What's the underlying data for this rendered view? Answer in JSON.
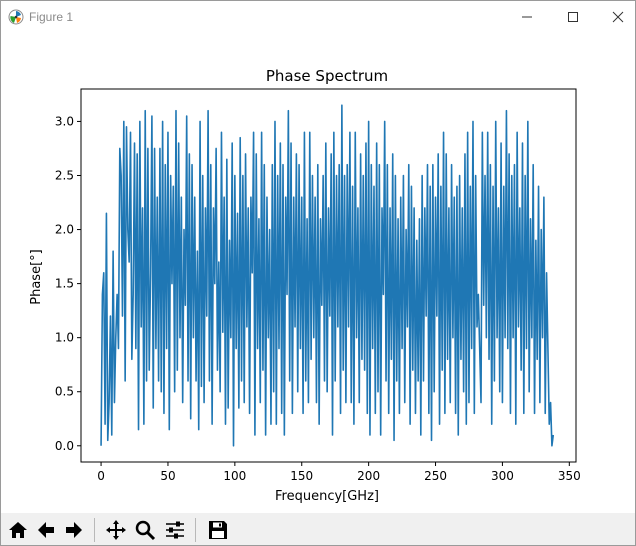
{
  "window": {
    "title": "Figure 1",
    "controls": {
      "minimize": "minimize",
      "maximize": "maximize",
      "close": "close"
    }
  },
  "toolbar": {
    "buttons": [
      {
        "name": "home-button",
        "icon": "home-icon",
        "label": "Home"
      },
      {
        "name": "back-button",
        "icon": "arrow-left-icon",
        "label": "Back"
      },
      {
        "name": "forward-button",
        "icon": "arrow-right-icon",
        "label": "Forward"
      },
      {
        "name": "pan-button",
        "icon": "move-icon",
        "label": "Pan"
      },
      {
        "name": "zoom-button",
        "icon": "magnifier-icon",
        "label": "Zoom"
      },
      {
        "name": "configure-subplots-button",
        "icon": "sliders-icon",
        "label": "Subplots"
      },
      {
        "name": "save-button",
        "icon": "floppy-disk-icon",
        "label": "Save"
      }
    ]
  },
  "chart_data": {
    "type": "line",
    "title": "Phase Spectrum",
    "xlabel": "Frequency[GHz]",
    "ylabel": "Phase[°]",
    "xlim": [
      -15,
      355
    ],
    "ylim": [
      -0.15,
      3.3
    ],
    "xticks": [
      0,
      50,
      100,
      150,
      200,
      250,
      300,
      350
    ],
    "yticks": [
      0.0,
      0.5,
      1.0,
      1.5,
      2.0,
      2.5,
      3.0
    ],
    "xtick_labels": [
      "0",
      "50",
      "100",
      "150",
      "200",
      "250",
      "300",
      "350"
    ],
    "ytick_labels": [
      "0.0",
      "0.5",
      "1.0",
      "1.5",
      "2.0",
      "2.5",
      "3.0"
    ],
    "grid": false,
    "line_color": "#1f77b4",
    "series": [
      {
        "x_start": 0,
        "x_step": 1,
        "y": [
          0.0,
          1.4,
          1.6,
          0.2,
          2.15,
          0.05,
          0.4,
          1.2,
          0.1,
          1.8,
          0.4,
          1.0,
          1.4,
          0.9,
          2.75,
          2.5,
          1.2,
          3.0,
          0.6,
          2.95,
          2.0,
          1.7,
          2.9,
          0.8,
          1.4,
          2.8,
          0.9,
          2.7,
          0.15,
          3.0,
          1.1,
          2.2,
          0.2,
          3.1,
          0.6,
          2.75,
          0.7,
          1.6,
          3.05,
          0.35,
          2.75,
          0.9,
          2.3,
          0.6,
          2.75,
          0.5,
          3.0,
          0.3,
          2.6,
          0.9,
          2.9,
          0.15,
          2.5,
          1.5,
          2.4,
          0.5,
          3.1,
          0.7,
          2.8,
          1.0,
          2.3,
          0.4,
          2.0,
          1.3,
          3.05,
          0.6,
          2.7,
          0.25,
          2.6,
          1.0,
          2.3,
          0.6,
          1.8,
          0.15,
          3.0,
          0.55,
          2.5,
          0.4,
          2.2,
          1.2,
          3.1,
          0.6,
          2.6,
          0.2,
          2.2,
          1.5,
          2.75,
          0.7,
          1.7,
          0.5,
          2.9,
          1.05,
          2.3,
          0.2,
          2.65,
          0.35,
          1.9,
          1.0,
          2.8,
          0.0,
          2.5,
          0.9,
          2.15,
          0.35,
          2.85,
          0.6,
          2.5,
          0.4,
          2.7,
          1.1,
          2.2,
          0.3,
          2.3,
          1.6,
          2.9,
          0.1,
          2.7,
          0.9,
          2.1,
          0.4,
          2.9,
          0.7,
          2.6,
          0.1,
          2.3,
          1.0,
          2.0,
          0.2,
          2.6,
          0.5,
          3.0,
          0.2,
          2.5,
          0.9,
          2.8,
          0.3,
          2.6,
          0.1,
          2.3,
          1.4,
          3.1,
          0.6,
          2.8,
          0.3,
          2.3,
          1.1,
          2.7,
          0.5,
          2.6,
          0.9,
          2.3,
          0.3,
          2.9,
          0.6,
          2.1,
          0.4,
          2.9,
          0.8,
          2.5,
          1.0,
          2.3,
          0.4,
          2.6,
          0.2,
          2.1,
          1.3,
          2.5,
          0.6,
          2.8,
          0.5,
          2.2,
          1.2,
          2.7,
          0.1,
          2.9,
          0.6,
          2.5,
          1.1,
          2.6,
          0.3,
          3.15,
          0.7,
          2.5,
          0.4,
          2.6,
          1.1,
          2.9,
          0.4,
          2.4,
          0.2,
          2.9,
          1.0,
          2.2,
          0.4,
          2.7,
          0.8,
          2.5,
          0.7,
          2.8,
          0.3,
          3.0,
          0.1,
          2.6,
          0.9,
          2.4,
          0.3,
          2.8,
          0.5,
          2.6,
          0.1,
          2.2,
          1.4,
          3.0,
          0.6,
          2.6,
          0.3,
          2.2,
          0.8,
          2.7,
          0.05,
          2.5,
          0.6,
          2.1,
          0.3,
          2.3,
          0.9,
          2.5,
          0.4,
          2.0,
          1.1,
          2.6,
          0.2,
          2.4,
          0.7,
          2.2,
          0.3,
          1.9,
          0.6,
          2.1,
          0.1,
          2.5,
          0.6,
          2.2,
          1.2,
          2.6,
          0.3,
          2.4,
          0.05,
          2.6,
          0.5,
          2.3,
          1.2,
          2.7,
          0.2,
          2.4,
          0.7,
          2.9,
          0.3,
          2.7,
          0.8,
          2.2,
          0.4,
          2.6,
          1.0,
          2.3,
          0.3,
          2.4,
          0.1,
          2.5,
          0.8,
          2.2,
          0.5,
          2.7,
          0.2,
          2.9,
          0.4,
          2.4,
          0.9,
          3.0,
          0.3,
          2.5,
          1.1,
          1.4,
          0.9,
          0.4,
          2.9,
          1.3,
          2.5,
          1.0,
          2.9,
          0.8,
          2.6,
          0.2,
          2.4,
          0.6,
          3.0,
          1.0,
          2.2,
          0.5,
          2.8,
          0.4,
          2.4,
          1.0,
          3.1,
          0.9,
          2.7,
          0.3,
          2.5,
          1.0,
          2.6,
          0.2,
          2.9,
          1.1,
          2.2,
          0.7,
          2.8,
          0.3,
          2.5,
          0.9,
          3.0,
          0.5,
          2.1,
          1.0,
          2.6,
          0.3,
          1.9,
          0.8,
          2.4,
          0.4,
          2.0,
          1.0,
          2.3,
          0.3,
          1.6,
          0.9,
          0.2,
          0.4,
          0.0,
          0.1
        ]
      }
    ]
  }
}
